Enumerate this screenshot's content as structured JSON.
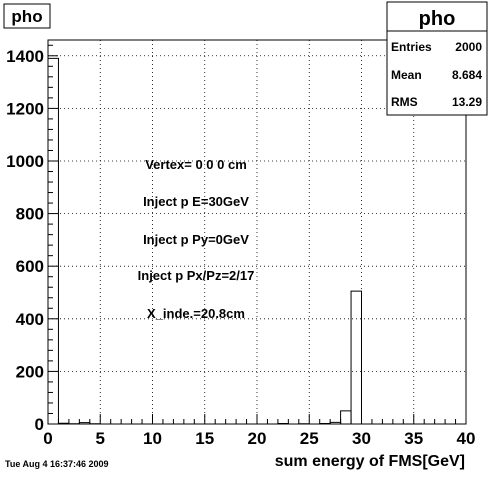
{
  "canvas_title": "pho",
  "timestamp": "Tue Aug  4 16:37:46 2009",
  "stats": {
    "name": "pho",
    "rows": [
      {
        "label": "Entries",
        "value": "2000"
      },
      {
        "label": "Mean",
        "value": "8.684"
      },
      {
        "label": "RMS",
        "value": "13.29"
      }
    ]
  },
  "annotations": [
    "Vertex= 0 0 0 cm",
    "Inject p E=30GeV",
    "Inject p Py=0GeV",
    "Inject p Px/Pz=2/17",
    "X_inde.=20.8cm"
  ],
  "chart_data": {
    "type": "bar",
    "xlabel": "sum energy of FMS[GeV]",
    "ylabel": "",
    "xlim": [
      0,
      40
    ],
    "ylim": [
      0,
      1460
    ],
    "grid": true,
    "bin_width": 1,
    "bins": [
      {
        "x": 0,
        "y": 1390
      },
      {
        "x": 1,
        "y": 3
      },
      {
        "x": 2,
        "y": 1
      },
      {
        "x": 3,
        "y": 5
      },
      {
        "x": 4,
        "y": 1
      },
      {
        "x": 5,
        "y": 0
      },
      {
        "x": 22,
        "y": 2
      },
      {
        "x": 24,
        "y": 1
      },
      {
        "x": 26,
        "y": 2
      },
      {
        "x": 27,
        "y": 6
      },
      {
        "x": 28,
        "y": 50
      },
      {
        "x": 29,
        "y": 505
      },
      {
        "x": 30,
        "y": 0
      }
    ],
    "x_ticks": [
      0,
      5,
      10,
      15,
      20,
      25,
      30,
      35,
      40
    ],
    "y_ticks": [
      0,
      200,
      400,
      600,
      800,
      1000,
      1200,
      1400
    ]
  }
}
